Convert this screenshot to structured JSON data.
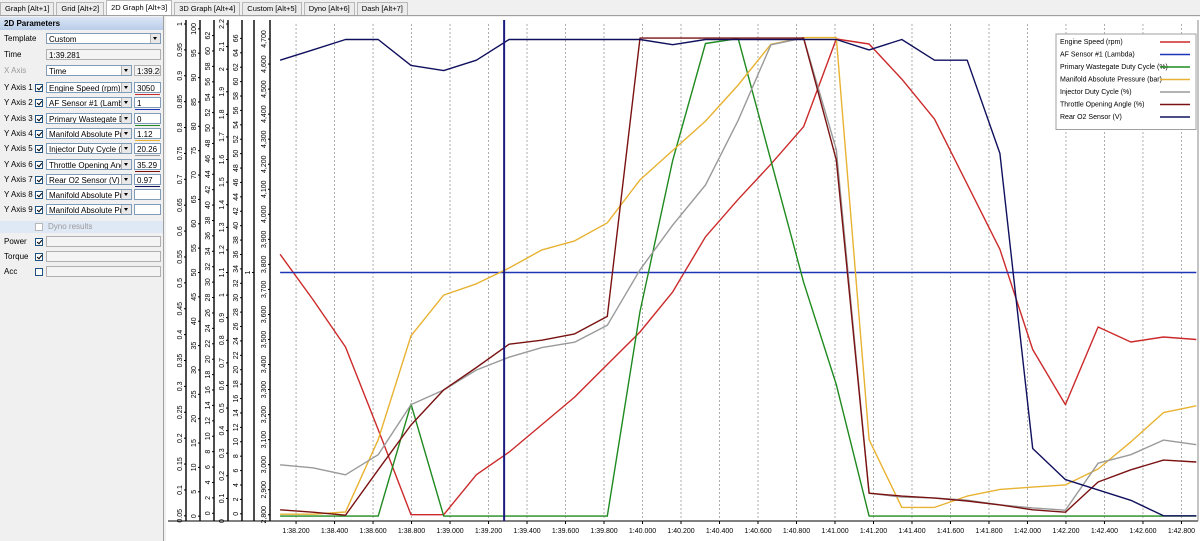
{
  "tabs": [
    "Graph [Alt+1]",
    "Grid [Alt+2]",
    "2D Graph [Alt+3]",
    "3D Graph [Alt+4]",
    "Custom [Alt+5]",
    "Dyno [Alt+6]",
    "Dash [Alt+7]"
  ],
  "selected_tab": 2,
  "panel": {
    "title": "2D Parameters",
    "template": {
      "label": "Template",
      "value": "Custom"
    },
    "time": {
      "label": "Time",
      "value": "1:39.281"
    },
    "x_axis": {
      "label": "X Axis",
      "value": "Time",
      "readout": "1:39.28"
    },
    "y_axes": [
      {
        "label": "Y Axis 1",
        "checked": true,
        "channel": "Engine Speed (rpm)",
        "readout": "3050"
      },
      {
        "label": "Y Axis 2",
        "checked": true,
        "channel": "AF Sensor #1 (Lambda)",
        "readout": "1"
      },
      {
        "label": "Y Axis 3",
        "checked": true,
        "channel": "Primary Wastegate Duty",
        "readout": "0"
      },
      {
        "label": "Y Axis 4",
        "checked": true,
        "channel": "Manifold Absolute Press",
        "readout": "1.12"
      },
      {
        "label": "Y Axis 5",
        "checked": true,
        "channel": "Injector Duty Cycle (%)",
        "readout": "20.26"
      },
      {
        "label": "Y Axis 6",
        "checked": true,
        "channel": "Throttle Opening Angle (",
        "readout": "35.29"
      },
      {
        "label": "Y Axis 7",
        "checked": true,
        "channel": "Rear O2 Sensor (V)",
        "readout": "0.97"
      },
      {
        "label": "Y Axis 8",
        "checked": true,
        "channel": "Manifold Absolute Press"
      },
      {
        "label": "Y Axis 9",
        "checked": true,
        "channel": "Manifold Absolute Press"
      }
    ],
    "dyno": "Dyno results",
    "options": [
      {
        "label": "Power",
        "checked": true
      },
      {
        "label": "Torque",
        "checked": true
      },
      {
        "label": "Acc",
        "checked": false
      }
    ]
  },
  "chart_data": {
    "type": "line",
    "x": [
      98.117,
      98.287,
      98.457,
      98.627,
      98.797,
      98.967,
      99.137,
      99.307,
      99.477,
      99.647,
      99.817,
      99.987,
      100.157,
      100.327,
      100.497,
      100.667,
      100.837,
      101.007,
      101.177,
      101.347,
      101.517,
      101.687,
      101.857,
      102.027,
      102.197,
      102.367,
      102.537,
      102.707,
      102.877
    ],
    "xlim": [
      98.075,
      102.886
    ],
    "xticks": [
      {
        "value": 98.2,
        "label": "1:38.200"
      },
      {
        "value": 98.4,
        "label": "1:38.400"
      },
      {
        "value": 98.6,
        "label": "1:38.600"
      },
      {
        "value": 98.8,
        "label": "1:38.800"
      },
      {
        "value": 99,
        "label": "1:39.000"
      },
      {
        "value": 99.2,
        "label": "1:39.200"
      },
      {
        "value": 99.4,
        "label": "1:39.400"
      },
      {
        "value": 99.6,
        "label": "1:39.600"
      },
      {
        "value": 99.8,
        "label": "1:39.800"
      },
      {
        "value": 100,
        "label": "1:40.000"
      },
      {
        "value": 100.2,
        "label": "1:40.200"
      },
      {
        "value": 100.4,
        "label": "1:40.400"
      },
      {
        "value": 100.6,
        "label": "1:40.600"
      },
      {
        "value": 100.8,
        "label": "1:40.800"
      },
      {
        "value": 101,
        "label": "1:41.000"
      },
      {
        "value": 101.2,
        "label": "1:41.200"
      },
      {
        "value": 101.4,
        "label": "1:41.400"
      },
      {
        "value": 101.6,
        "label": "1:41.600"
      },
      {
        "value": 101.8,
        "label": "1:41.800"
      },
      {
        "value": 102,
        "label": "1:42.000"
      },
      {
        "value": 102.2,
        "label": "1:42.200"
      },
      {
        "value": 102.4,
        "label": "1:42.400"
      },
      {
        "value": 102.6,
        "label": "1:42.600"
      },
      {
        "value": 102.8,
        "label": "1:42.800"
      }
    ],
    "grid": true,
    "cursor_x": 99.281,
    "legend": "top-right",
    "y_axes": [
      {
        "ylim": [
          0.04,
          1
        ],
        "yticks": [
          0.05,
          0.1,
          0.15,
          0.2,
          0.25,
          0.3,
          0.35,
          0.4,
          0.45,
          0.5,
          0.55,
          0.6,
          0.65,
          0.7,
          0.75,
          0.8,
          0.85,
          0.9,
          0.95,
          1
        ]
      },
      {
        "ylim": [
          -1,
          101
        ],
        "yticks": [
          0,
          5,
          10,
          15,
          20,
          25,
          30,
          35,
          40,
          45,
          50,
          55,
          60,
          65,
          70,
          75,
          80,
          85,
          90,
          95,
          100
        ]
      },
      {
        "ylim": [
          -1,
          63.5
        ],
        "yticks": [
          0,
          2,
          4,
          6,
          8,
          10,
          12,
          14,
          16,
          18,
          20,
          22,
          24,
          26,
          28,
          30,
          32,
          34,
          36,
          38,
          40,
          42,
          44,
          46,
          48,
          50,
          52,
          54,
          56,
          58,
          60,
          62
        ]
      },
      {
        "ylim": [
          0,
          2.2
        ],
        "yticks": [
          0,
          0.1,
          0.2,
          0.3,
          0.4,
          0.5,
          0.6,
          0.7,
          0.8,
          0.9,
          1,
          1.1,
          1.2,
          1.3,
          1.4,
          1.5,
          1.6,
          1.7,
          1.8,
          1.9,
          2,
          2.1,
          2.2
        ]
      },
      {
        "ylim": [
          -1,
          68
        ],
        "yticks": [
          0,
          2,
          4,
          6,
          8,
          10,
          12,
          14,
          16,
          18,
          20,
          22,
          24,
          26,
          28,
          30,
          32,
          34,
          36,
          38,
          40,
          42,
          44,
          46,
          48,
          50,
          52,
          54,
          56,
          58,
          60,
          62,
          64,
          66
        ]
      },
      {
        "ylim": [
          0,
          2
        ],
        "yticks": [
          1
        ]
      },
      {
        "ylim": [
          2775,
          4760
        ],
        "yticks": [
          {
            "value": 2800,
            "label": "2,800"
          },
          {
            "value": 2900,
            "label": "2,900"
          },
          {
            "value": 3000,
            "label": "3,000"
          },
          {
            "value": 3100,
            "label": "3,100"
          },
          {
            "value": 3200,
            "label": "3,200"
          },
          {
            "value": 3300,
            "label": "3,300"
          },
          {
            "value": 3400,
            "label": "3,400"
          },
          {
            "value": 3500,
            "label": "3,500"
          },
          {
            "value": 3600,
            "label": "3,600"
          },
          {
            "value": 3700,
            "label": "3,700"
          },
          {
            "value": 3800,
            "label": "3,800"
          },
          {
            "value": 3900,
            "label": "3,900"
          },
          {
            "value": 4000,
            "label": "4,000"
          },
          {
            "value": 4100,
            "label": "4,100"
          },
          {
            "value": 4200,
            "label": "4,200"
          },
          {
            "value": 4300,
            "label": "4,300"
          },
          {
            "value": 4400,
            "label": "4,400"
          },
          {
            "value": 4500,
            "label": "4,500"
          },
          {
            "value": 4600,
            "label": "4,600"
          },
          {
            "value": 4700,
            "label": "4,700"
          }
        ]
      }
    ],
    "series": [
      {
        "name": "Engine Speed (rpm)",
        "color": "#cc2a2a",
        "axis": 6,
        "values": [
          3840,
          3660,
          3470,
          3140,
          2800,
          2800,
          2960,
          3050,
          3160,
          3270,
          3400,
          3530,
          3690,
          3910,
          4060,
          4200,
          4350,
          4700,
          4680,
          4540,
          4380,
          4120,
          3860,
          3460,
          3240,
          3550,
          3490,
          3510,
          3500
        ]
      },
      {
        "name": "AF Sensor #1 (Lambda)",
        "color": "#1f35b8",
        "axis": 5,
        "values": [
          1,
          1,
          1,
          1,
          1,
          1,
          1,
          1,
          1,
          1,
          1,
          1,
          1,
          1,
          1,
          1,
          1,
          1,
          1,
          1,
          1,
          1,
          1,
          1,
          1,
          1,
          1,
          1,
          1
        ]
      },
      {
        "name": "Primary Wastegate Duty Cycle (%)",
        "color": "#1f8a1f",
        "axis": 1,
        "values": [
          0,
          0,
          0,
          0,
          23,
          0,
          0,
          0,
          0,
          0,
          0,
          42,
          73,
          97,
          98,
          73,
          48,
          27,
          0,
          0,
          0,
          0,
          0,
          0,
          0,
          0,
          0,
          0,
          0
        ]
      },
      {
        "name": "Manifold Absolute Pressure (bar)",
        "color": "#e8b232",
        "axis": 3,
        "values": [
          0.03,
          0.03,
          0.04,
          0.36,
          0.82,
          1,
          1.05,
          1.12,
          1.2,
          1.24,
          1.32,
          1.51,
          1.64,
          1.77,
          1.93,
          2.11,
          2.14,
          2.14,
          0.36,
          0.06,
          0.06,
          0.11,
          0.14,
          0.15,
          0.16,
          0.23,
          0.35,
          0.48,
          0.51
        ]
      },
      {
        "name": "Injector Duty Cycle (%)",
        "color": "#9a9a9a",
        "axis": 2,
        "values": [
          6.3,
          5.9,
          5,
          7.6,
          14.1,
          16,
          18.6,
          20.26,
          21.5,
          22.2,
          24.4,
          31.6,
          37.4,
          42.6,
          51,
          60.8,
          61.7,
          47.2,
          2.6,
          2.1,
          2,
          1.7,
          1.1,
          0.7,
          0.4,
          6.5,
          7.6,
          9.5,
          8.9
        ]
      },
      {
        "name": "Throttle Opening Angle (%)",
        "color": "#7a1212",
        "axis": 1,
        "values": [
          1.3,
          0.8,
          0.2,
          9.5,
          18.7,
          25.9,
          30.5,
          35.29,
          36.1,
          37.4,
          41,
          98.1,
          98.1,
          98.1,
          98.1,
          98.1,
          98.1,
          73.1,
          4.7,
          4.1,
          3.7,
          3.1,
          2.3,
          1.3,
          0.8,
          7,
          9.5,
          11.5,
          11.1
        ]
      },
      {
        "name": "Rear O2 Sensor (V)",
        "color": "#10105e",
        "axis": 0,
        "values": [
          0.93,
          0.95,
          0.97,
          0.97,
          0.92,
          0.91,
          0.93,
          0.97,
          0.97,
          0.97,
          0.97,
          0.97,
          0.96,
          0.97,
          0.97,
          0.97,
          0.97,
          0.97,
          0.95,
          0.97,
          0.93,
          0.93,
          0.75,
          0.18,
          0.12,
          0.1,
          0.08,
          0.05,
          0.05
        ]
      }
    ]
  }
}
